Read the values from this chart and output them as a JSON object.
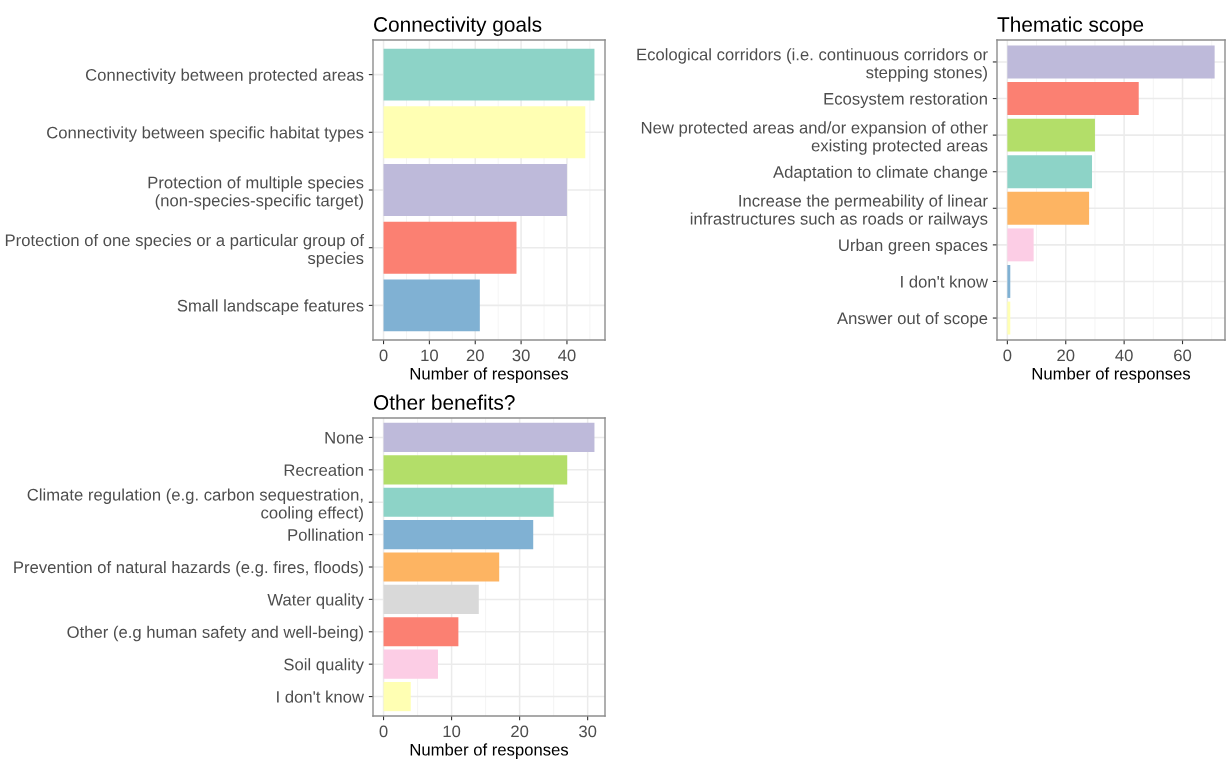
{
  "chart_data": [
    {
      "type": "bar",
      "orientation": "horizontal",
      "title": "Connectivity goals",
      "xlabel": "Number of responses",
      "categories": [
        "Connectivity between protected areas",
        "Connectivity between specific habitat types",
        "Protection of multiple species\n(non-species-specific target)",
        "Protection of one species or a particular group of\nspecies",
        "Small landscape features"
      ],
      "values": [
        46,
        44,
        40,
        29,
        21
      ],
      "colors": [
        "#8dd3c7",
        "#ffffb3",
        "#bebada",
        "#fb8072",
        "#80b1d3"
      ],
      "xlim": [
        -2.3,
        48.3
      ],
      "xticks": [
        0,
        10,
        20,
        30,
        40
      ],
      "grid": true,
      "legend": false
    },
    {
      "type": "bar",
      "orientation": "horizontal",
      "title": "Thematic scope",
      "xlabel": "Number of responses",
      "categories": [
        "Ecological corridors (i.e. continuous corridors or\nstepping stones)",
        "Ecosystem restoration",
        "New protected areas and/or expansion of other\nexisting protected areas",
        "Adaptation to climate change",
        "Increase the permeability of linear\ninfrastructures such as roads or railways",
        "Urban green spaces",
        "I don't know",
        "Answer out of scope"
      ],
      "values": [
        71,
        45,
        30,
        29,
        28,
        9,
        1,
        1
      ],
      "colors": [
        "#bebada",
        "#fb8072",
        "#b3de69",
        "#8dd3c7",
        "#fdb462",
        "#fccde5",
        "#80b1d3",
        "#ffffb3"
      ],
      "xlim": [
        -3.55,
        74.55
      ],
      "xticks": [
        0,
        20,
        40,
        60
      ],
      "grid": true,
      "legend": false
    },
    {
      "type": "bar",
      "orientation": "horizontal",
      "title": "Other benefits?",
      "xlabel": "Number of responses",
      "categories": [
        "None",
        "Recreation",
        "Climate regulation (e.g. carbon sequestration,\ncooling effect)",
        "Pollination",
        "Prevention of natural hazards (e.g. fires, floods)",
        "Water quality",
        "Other (e.g human safety and well-being)",
        "Soil quality",
        "I don't know"
      ],
      "values": [
        31,
        27,
        25,
        22,
        17,
        14,
        11,
        8,
        4
      ],
      "colors": [
        "#bebada",
        "#b3de69",
        "#8dd3c7",
        "#80b1d3",
        "#fdb462",
        "#d9d9d9",
        "#fb8072",
        "#fccde5",
        "#ffffb3"
      ],
      "xlim": [
        -1.55,
        32.55
      ],
      "xticks": [
        0,
        10,
        20,
        30
      ],
      "grid": true,
      "legend": false
    }
  ]
}
